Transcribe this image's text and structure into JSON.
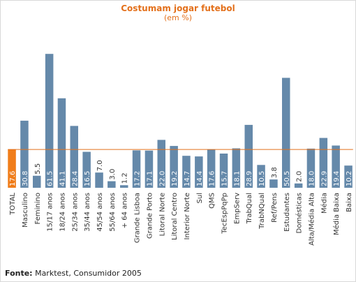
{
  "colors": {
    "bar": "#6589aa",
    "total_bar": "#f07d1a",
    "reference_line": "#e3701b",
    "title": "#e3701b",
    "bar_value_text": "#ffffff",
    "axis_text": "#333333"
  },
  "source": {
    "label": "Fonte:",
    "text": " Marktest, Consumidor 2005"
  },
  "chart_data": {
    "type": "bar",
    "title": "Costumam jogar futebol",
    "subtitle": "(em %)",
    "xlabel": "",
    "ylabel": "",
    "ylim": [
      0,
      65
    ],
    "grid": false,
    "reference_line": {
      "value": 17.6,
      "label": "TOTAL"
    },
    "categories": [
      "TOTAL",
      "Masculino",
      "Feminino",
      "15/17 anos",
      "18/24 anos",
      "25/34 anos",
      "35/44 anos",
      "45/54 anos",
      "55/64 anos",
      "+ 64 anos",
      "Grande Lisboa",
      "Grande Porto",
      "Litoral Norte",
      "Litoral Centro",
      "Interior Norte",
      "Sul",
      "QMS",
      "TecEspPqPp",
      "EmpServ",
      "TrabQual",
      "TrabNQual",
      "Ref/Pens",
      "Estudantes",
      "Domésticas",
      "Alta/Média Alta",
      "Média",
      "Média Baixa",
      "Baixa"
    ],
    "values": [
      17.6,
      30.8,
      5.5,
      61.5,
      41.1,
      28.4,
      16.5,
      7.0,
      3.0,
      1.2,
      17.2,
      17.1,
      22.0,
      19.2,
      14.7,
      14.4,
      17.6,
      15.7,
      18.1,
      28.9,
      10.5,
      3.8,
      50.5,
      2.0,
      18.0,
      22.9,
      19.4,
      10.2
    ],
    "value_labels": [
      "17.6",
      "30.8",
      "5.5",
      "61.5",
      "41.1",
      "28.4",
      "16.5",
      "7.0",
      "3.0",
      "1.2",
      "17.2",
      "17.1",
      "22.0",
      "19.2",
      "14.7",
      "14.4",
      "17.6",
      "15.7",
      "18.1",
      "28.9",
      "10.5",
      "3.8",
      "50.5",
      "2.0",
      "18.0",
      "22.9",
      "19.4",
      "10.2"
    ]
  }
}
